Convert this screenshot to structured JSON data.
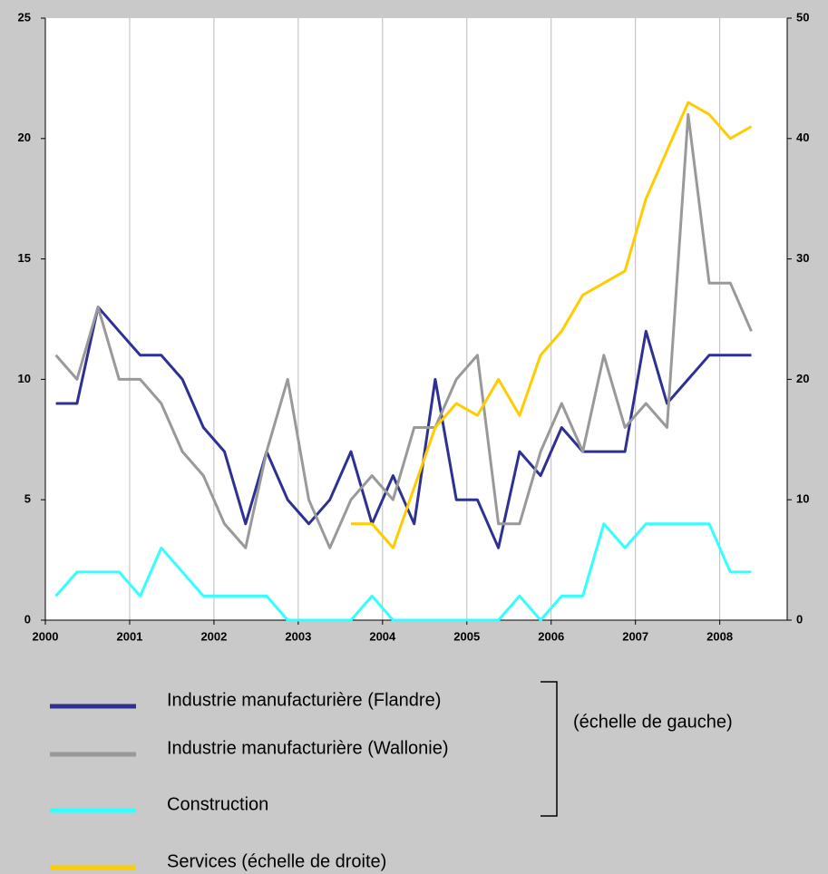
{
  "chart_data": {
    "type": "line",
    "x": [
      2000.125,
      2000.375,
      2000.625,
      2000.875,
      2001.125,
      2001.375,
      2001.625,
      2001.875,
      2002.125,
      2002.375,
      2002.625,
      2002.875,
      2003.125,
      2003.375,
      2003.625,
      2003.875,
      2004.125,
      2004.375,
      2004.625,
      2004.875,
      2005.125,
      2005.375,
      2005.625,
      2005.875,
      2006.125,
      2006.375,
      2006.625,
      2006.875,
      2007.125,
      2007.375,
      2007.625,
      2007.875,
      2008.125,
      2008.375
    ],
    "xlim": [
      2000,
      2008.8
    ],
    "xticks": [
      2000,
      2001,
      2002,
      2003,
      2004,
      2005,
      2006,
      2007,
      2008
    ],
    "ylim": [
      0,
      25
    ],
    "yticks": [
      0,
      5,
      10,
      15,
      20,
      25
    ],
    "y2lim": [
      0,
      50
    ],
    "y2ticks": [
      0,
      10,
      20,
      30,
      40,
      50
    ],
    "grid": true,
    "series": [
      {
        "name": "Industrie manufacturière (Flandre)",
        "color": "#2e3192",
        "values": [
          9,
          9,
          13,
          12,
          11,
          11,
          10,
          8,
          7,
          4,
          7,
          5,
          4,
          5,
          7,
          4,
          6,
          4,
          10,
          5,
          5,
          3,
          7,
          6,
          8,
          7,
          7,
          7,
          12,
          9,
          10,
          11,
          11,
          11
        ]
      },
      {
        "name": "Industrie manufacturière (Wallonie)",
        "color": "#999999",
        "values": [
          11,
          10,
          13,
          10,
          10,
          9,
          7,
          6,
          4,
          3,
          7,
          10,
          5,
          3,
          5,
          6,
          5,
          8,
          8,
          10,
          11,
          4,
          4,
          7,
          9,
          7,
          11,
          8,
          9,
          8,
          21,
          14,
          14,
          12
        ]
      },
      {
        "name": "Construction",
        "color": "#33ffff",
        "values": [
          1,
          2,
          2,
          2,
          1,
          3,
          2,
          1,
          1,
          1,
          1,
          0,
          0,
          0,
          0,
          1,
          0,
          0,
          0,
          0,
          0,
          0,
          1,
          0,
          1,
          1,
          4,
          3,
          4,
          4,
          4,
          4,
          2,
          2
        ]
      },
      {
        "name": "Services (échelle de droite)",
        "color": "#ffcc00",
        "axis": "y2",
        "values": [
          null,
          null,
          null,
          null,
          null,
          null,
          null,
          null,
          null,
          null,
          null,
          null,
          null,
          null,
          8,
          8,
          6,
          11,
          16,
          18,
          17,
          20,
          17,
          22,
          24,
          27,
          28,
          29,
          35,
          39,
          43,
          42,
          40,
          41
        ]
      }
    ],
    "annotations": [
      "(échelle de gauche)"
    ]
  }
}
